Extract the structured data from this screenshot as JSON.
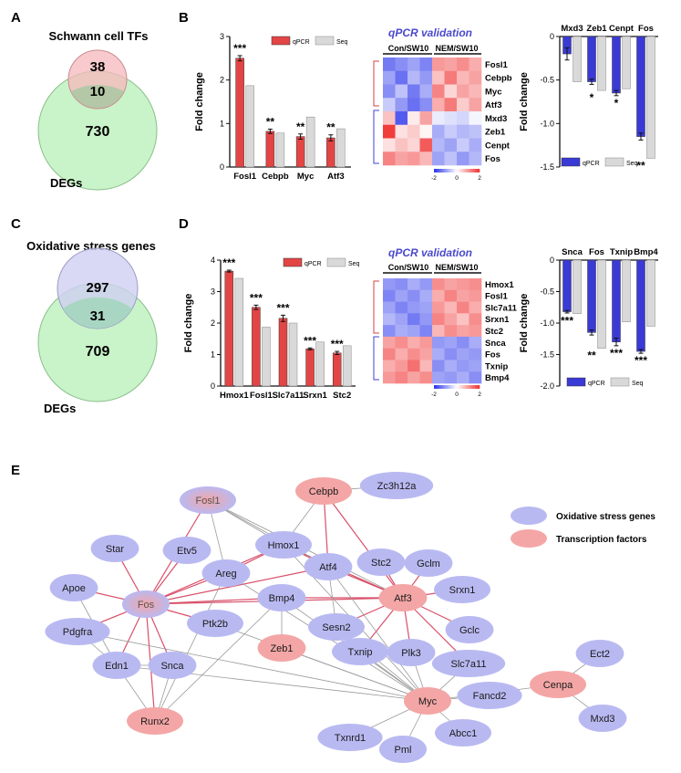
{
  "panels": {
    "a": "A",
    "b": "B",
    "c": "C",
    "d": "D",
    "e": "E"
  },
  "venn_a": {
    "title": "Schwann cell TFs",
    "top_only": "38",
    "overlap": "10",
    "bottom_only": "730",
    "bottom_label": "DEGs"
  },
  "venn_c": {
    "title": "Oxidative stress genes",
    "top_only": "297",
    "overlap": "31",
    "bottom_only": "709",
    "bottom_label": "DEGs"
  },
  "legend_bars": {
    "qpcr": "qPCR",
    "seq": "Seq"
  },
  "heatmap_common": {
    "title": "qPCR validation",
    "col_left": "Con/SW10",
    "col_right": "NEM/SW10",
    "scale_ticks": [
      "-2",
      "0",
      "2"
    ]
  },
  "chart_data": [
    {
      "id": "b_up",
      "type": "bar",
      "categories": [
        "Fosl1",
        "Cebpb",
        "Myc",
        "Atf3"
      ],
      "series": [
        {
          "name": "qPCR",
          "values": [
            2.5,
            0.82,
            0.7,
            0.67
          ],
          "errors": [
            0.06,
            0.05,
            0.06,
            0.07
          ]
        },
        {
          "name": "Seq",
          "values": [
            1.87,
            0.78,
            1.15,
            0.88
          ]
        }
      ],
      "significance": [
        "***",
        "**",
        "**",
        "**"
      ],
      "ylabel": "Fold change",
      "ylim": [
        0,
        3
      ],
      "yticks": [
        "0",
        "1",
        "2",
        "3"
      ]
    },
    {
      "id": "b_heatmap",
      "type": "heatmap",
      "rows": [
        "Fosl1",
        "Cebpb",
        "Myc",
        "Atf3",
        "Mxd3",
        "Zeb1",
        "Cenpt",
        "Fos"
      ],
      "values": [
        [
          -1.3,
          -1.1,
          -0.9,
          -1.2,
          1.0,
          0.9,
          1.1,
          0.8
        ],
        [
          -0.9,
          -1.4,
          -0.7,
          -1.0,
          0.6,
          1.3,
          0.7,
          0.9
        ],
        [
          -1.1,
          -0.6,
          -1.3,
          -0.8,
          1.2,
          0.4,
          0.9,
          0.7
        ],
        [
          -0.5,
          -1.0,
          -1.4,
          -1.1,
          0.8,
          1.3,
          0.5,
          0.9
        ],
        [
          0.6,
          -1.6,
          0.2,
          0.9,
          -0.2,
          -0.3,
          -0.4,
          -0.1
        ],
        [
          1.9,
          0.3,
          0.5,
          0.1,
          -0.8,
          -0.5,
          -0.7,
          -0.6
        ],
        [
          0.3,
          0.6,
          0.4,
          1.6,
          -0.7,
          -0.9,
          -0.5,
          -0.8
        ],
        [
          1.2,
          0.9,
          1.0,
          0.7,
          -0.9,
          -0.6,
          -1.0,
          -0.7
        ]
      ]
    },
    {
      "id": "b_down",
      "type": "bar",
      "categories": [
        "Mxd3",
        "Zeb1",
        "Cenpt",
        "Fos"
      ],
      "series": [
        {
          "name": "qPCR",
          "values": [
            -0.2,
            -0.52,
            -0.65,
            -1.15
          ],
          "errors": [
            0.07,
            0.03,
            0.03,
            0.04
          ]
        },
        {
          "name": "Seq",
          "values": [
            -0.52,
            -0.62,
            -0.6,
            -1.4
          ]
        }
      ],
      "significance": [
        "",
        "*",
        "*",
        "**"
      ],
      "ylabel": "Fold change",
      "ylim": [
        -1.5,
        0
      ],
      "yticks": [
        "-1.5",
        "-1.0",
        "-0.5",
        "0"
      ]
    },
    {
      "id": "d_up",
      "type": "bar",
      "categories": [
        "Hmox1",
        "Fosl1",
        "Slc7a11",
        "Srxn1",
        "Stc2"
      ],
      "series": [
        {
          "name": "qPCR",
          "values": [
            3.65,
            2.5,
            2.15,
            1.18,
            1.05
          ],
          "errors": [
            0.03,
            0.07,
            0.1,
            0.03,
            0.05
          ]
        },
        {
          "name": "Seq",
          "values": [
            3.42,
            1.87,
            2.0,
            1.4,
            1.28
          ]
        }
      ],
      "significance": [
        "***",
        "***",
        "***",
        "***",
        "***"
      ],
      "ylabel": "Fold change",
      "ylim": [
        0,
        4
      ],
      "yticks": [
        "0",
        "1",
        "2",
        "3",
        "4"
      ]
    },
    {
      "id": "d_heatmap",
      "type": "heatmap",
      "rows": [
        "Hmox1",
        "Fosl1",
        "Slc7a11",
        "Srxn1",
        "Stc2",
        "Snca",
        "Fos",
        "Txnip",
        "Bmp4"
      ],
      "values": [
        [
          -1.0,
          -1.1,
          -0.8,
          -1.0,
          1.1,
          0.9,
          1.0,
          1.1
        ],
        [
          -1.2,
          -0.9,
          -1.1,
          -0.8,
          0.8,
          1.2,
          0.9,
          1.0
        ],
        [
          -0.9,
          -1.2,
          -1.0,
          -0.9,
          1.0,
          0.7,
          1.2,
          0.8
        ],
        [
          -0.7,
          -0.9,
          -1.3,
          -1.0,
          1.2,
          0.9,
          0.6,
          1.1
        ],
        [
          -1.1,
          -0.8,
          -0.9,
          -1.2,
          0.7,
          1.1,
          0.9,
          1.0
        ],
        [
          0.9,
          1.1,
          0.8,
          1.0,
          -1.0,
          -0.9,
          -1.1,
          -0.8
        ],
        [
          1.2,
          0.8,
          1.1,
          0.9,
          -0.8,
          -1.1,
          -0.9,
          -1.0
        ],
        [
          0.8,
          1.0,
          1.4,
          0.7,
          -1.1,
          -0.8,
          -1.0,
          -0.9
        ],
        [
          1.0,
          1.2,
          0.9,
          1.1,
          -0.9,
          -1.0,
          -0.8,
          -1.1
        ]
      ]
    },
    {
      "id": "d_down",
      "type": "bar",
      "categories": [
        "Snca",
        "Fos",
        "Txnip",
        "Bmp4"
      ],
      "series": [
        {
          "name": "qPCR",
          "values": [
            -0.82,
            -1.15,
            -1.3,
            -1.45
          ],
          "errors": [
            0.02,
            0.04,
            0.06,
            0.03
          ]
        },
        {
          "name": "Seq",
          "values": [
            -0.85,
            -1.4,
            -0.98,
            -1.05
          ]
        }
      ],
      "significance": [
        "***",
        "**",
        "***",
        "***"
      ],
      "ylabel": "Fold change",
      "ylim": [
        -2.0,
        0
      ],
      "yticks": [
        "-2.0",
        "-1.5",
        "-1.0",
        "-0.5",
        "0"
      ]
    }
  ],
  "network": {
    "legend": {
      "ox": "Oxidative stress genes",
      "tf": "Transcription factors"
    },
    "colors": {
      "ox": "#b9b9f2",
      "tf": "#f4a6a6",
      "edge_red": "#d9506a",
      "edge_gray": "#9a9a9a"
    },
    "nodes": [
      {
        "id": "Fosl1",
        "kind": "both"
      },
      {
        "id": "Cebpb",
        "kind": "tf"
      },
      {
        "id": "Zc3h12a",
        "kind": "ox"
      },
      {
        "id": "Star",
        "kind": "ox"
      },
      {
        "id": "Etv5",
        "kind": "ox"
      },
      {
        "id": "Hmox1",
        "kind": "ox"
      },
      {
        "id": "Stc2",
        "kind": "ox"
      },
      {
        "id": "Gclm",
        "kind": "ox"
      },
      {
        "id": "Areg",
        "kind": "ox"
      },
      {
        "id": "Atf4",
        "kind": "ox"
      },
      {
        "id": "Srxn1",
        "kind": "ox"
      },
      {
        "id": "Apoe",
        "kind": "ox"
      },
      {
        "id": "Fos",
        "kind": "both"
      },
      {
        "id": "Bmp4",
        "kind": "ox"
      },
      {
        "id": "Atf3",
        "kind": "tf"
      },
      {
        "id": "Gclc",
        "kind": "ox"
      },
      {
        "id": "Pdgfra",
        "kind": "ox"
      },
      {
        "id": "Ptk2b",
        "kind": "ox"
      },
      {
        "id": "Sesn2",
        "kind": "ox"
      },
      {
        "id": "Slc7a11",
        "kind": "ox"
      },
      {
        "id": "Edn1",
        "kind": "ox"
      },
      {
        "id": "Snca",
        "kind": "ox"
      },
      {
        "id": "Zeb1",
        "kind": "tf"
      },
      {
        "id": "Txnip",
        "kind": "ox"
      },
      {
        "id": "Plk3",
        "kind": "ox"
      },
      {
        "id": "Ect2",
        "kind": "ox"
      },
      {
        "id": "Fancd2",
        "kind": "ox"
      },
      {
        "id": "Cenpa",
        "kind": "tf"
      },
      {
        "id": "Myc",
        "kind": "tf"
      },
      {
        "id": "Runx2",
        "kind": "tf"
      },
      {
        "id": "Abcc1",
        "kind": "ox"
      },
      {
        "id": "Mxd3",
        "kind": "ox"
      },
      {
        "id": "Txnrd1",
        "kind": "ox"
      },
      {
        "id": "Pml",
        "kind": "ox"
      }
    ],
    "edges": [
      [
        "Fos",
        "Fosl1",
        "red"
      ],
      [
        "Fos",
        "Star",
        "red"
      ],
      [
        "Fos",
        "Etv5",
        "red"
      ],
      [
        "Fos",
        "Apoe",
        "red"
      ],
      [
        "Fos",
        "Pdgfra",
        "red"
      ],
      [
        "Fos",
        "Edn1",
        "red"
      ],
      [
        "Fos",
        "Snca",
        "red"
      ],
      [
        "Fos",
        "Ptk2b",
        "red"
      ],
      [
        "Fos",
        "Areg",
        "red"
      ],
      [
        "Fos",
        "Hmox1",
        "red"
      ],
      [
        "Fos",
        "Atf4",
        "red"
      ],
      [
        "Fos",
        "Bmp4",
        "red"
      ],
      [
        "Fos",
        "Atf3",
        "red"
      ],
      [
        "Fos",
        "Runx2",
        "red"
      ],
      [
        "Atf3",
        "Stc2",
        "red"
      ],
      [
        "Atf3",
        "Gclm",
        "red"
      ],
      [
        "Atf3",
        "Srxn1",
        "red"
      ],
      [
        "Atf3",
        "Gclc",
        "red"
      ],
      [
        "Atf3",
        "Slc7a11",
        "red"
      ],
      [
        "Atf3",
        "Plk3",
        "red"
      ],
      [
        "Atf3",
        "Txnip",
        "red"
      ],
      [
        "Atf3",
        "Sesn2",
        "red"
      ],
      [
        "Atf3",
        "Atf4",
        "red"
      ],
      [
        "Atf3",
        "Cebpb",
        "red"
      ],
      [
        "Atf3",
        "Hmox1",
        "red"
      ],
      [
        "Atf3",
        "Bmp4",
        "red"
      ],
      [
        "Hmox1",
        "Areg",
        "red"
      ],
      [
        "Hmox1",
        "Atf4",
        "red"
      ],
      [
        "Cebpb",
        "Atf4",
        "red"
      ],
      [
        "Fosl1",
        "Hmox1",
        "gray"
      ],
      [
        "Fosl1",
        "Atf4",
        "gray"
      ],
      [
        "Fosl1",
        "Areg",
        "gray"
      ],
      [
        "Fosl1",
        "Atf3",
        "gray"
      ],
      [
        "Cebpb",
        "Zc3h12a",
        "gray"
      ],
      [
        "Cebpb",
        "Hmox1",
        "gray"
      ],
      [
        "Apoe",
        "Edn1",
        "gray"
      ],
      [
        "Pdgfra",
        "Edn1",
        "gray"
      ],
      [
        "Pdgfra",
        "Myc",
        "gray"
      ],
      [
        "Edn1",
        "Snca",
        "gray"
      ],
      [
        "Edn1",
        "Runx2",
        "gray"
      ],
      [
        "Snca",
        "Runx2",
        "gray"
      ],
      [
        "Areg",
        "Runx2",
        "gray"
      ],
      [
        "Areg",
        "Myc",
        "gray"
      ],
      [
        "Bmp4",
        "Myc",
        "gray"
      ],
      [
        "Bmp4",
        "Runx2",
        "gray"
      ],
      [
        "Bmp4",
        "Zeb1",
        "gray"
      ],
      [
        "Atf4",
        "Myc",
        "gray"
      ],
      [
        "Atf4",
        "Sesn2",
        "gray"
      ],
      [
        "Hmox1",
        "Myc",
        "gray"
      ],
      [
        "Txnip",
        "Myc",
        "gray"
      ],
      [
        "Plk3",
        "Myc",
        "gray"
      ],
      [
        "Slc7a11",
        "Myc",
        "gray"
      ],
      [
        "Sesn2",
        "Myc",
        "gray"
      ],
      [
        "Myc",
        "Fancd2",
        "gray"
      ],
      [
        "Myc",
        "Abcc1",
        "gray"
      ],
      [
        "Myc",
        "Pml",
        "gray"
      ],
      [
        "Myc",
        "Txnrd1",
        "gray"
      ],
      [
        "Myc",
        "Cenpa",
        "gray"
      ],
      [
        "Cenpa",
        "Ect2",
        "gray"
      ],
      [
        "Cenpa",
        "Mxd3",
        "gray"
      ],
      [
        "Ptk2b",
        "Myc",
        "gray"
      ],
      [
        "Zeb1",
        "Myc",
        "gray"
      ],
      [
        "Edn1",
        "Myc",
        "gray"
      ]
    ]
  }
}
